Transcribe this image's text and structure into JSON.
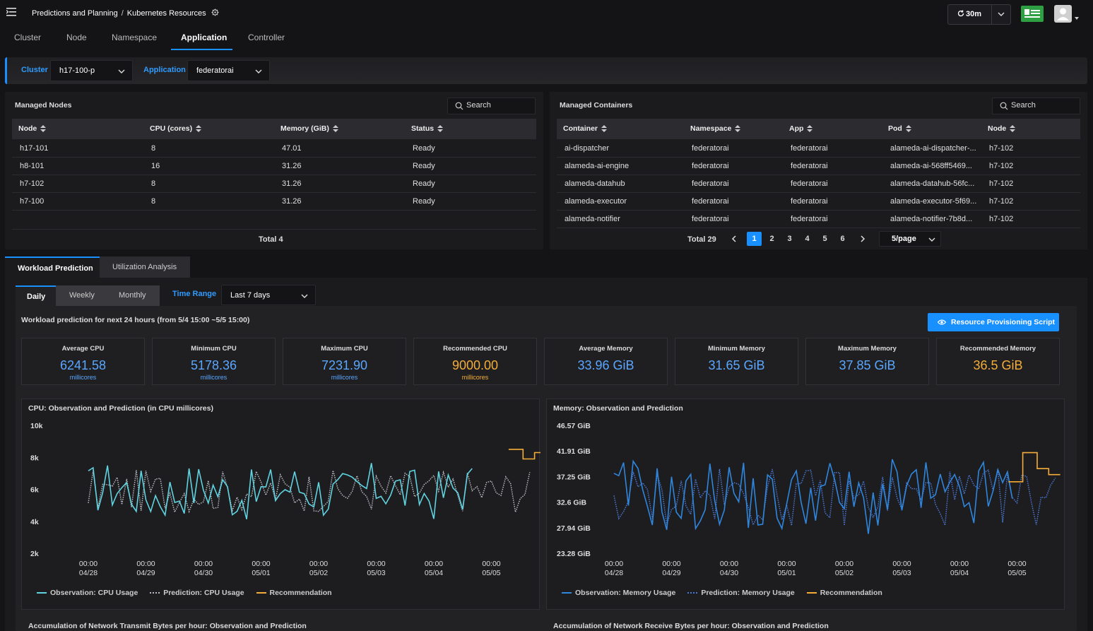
{
  "header": {
    "breadcrumb": [
      "Predictions and Planning",
      "Kubernetes Resources"
    ],
    "refresh_label": "30m"
  },
  "tabs": [
    "Cluster",
    "Node",
    "Namespace",
    "Application",
    "Controller"
  ],
  "active_tab": "Application",
  "filters": {
    "cluster_label": "Cluster",
    "cluster_value": "h17-100-p",
    "application_label": "Application",
    "application_value": "federatorai"
  },
  "managed_nodes": {
    "title": "Managed Nodes",
    "search_placeholder": "Search",
    "columns": [
      "Node",
      "CPU (cores)",
      "Memory (GiB)",
      "Status"
    ],
    "rows": [
      [
        "h17-101",
        "8",
        "47.01",
        "Ready"
      ],
      [
        "h8-101",
        "16",
        "31.26",
        "Ready"
      ],
      [
        "h7-102",
        "8",
        "31.26",
        "Ready"
      ],
      [
        "h7-100",
        "8",
        "31.26",
        "Ready"
      ]
    ],
    "total": "Total 4"
  },
  "managed_containers": {
    "title": "Managed Containers",
    "search_placeholder": "Search",
    "columns": [
      "Container",
      "Namespace",
      "App",
      "Pod",
      "Node"
    ],
    "rows": [
      [
        "ai-dispatcher",
        "federatorai",
        "federatorai",
        "alameda-ai-dispatcher-...",
        "h7-102"
      ],
      [
        "alameda-ai-engine",
        "federatorai",
        "federatorai",
        "alameda-ai-568ff5469...",
        "h7-102"
      ],
      [
        "alameda-datahub",
        "federatorai",
        "federatorai",
        "alameda-datahub-56fc...",
        "h7-102"
      ],
      [
        "alameda-executor",
        "federatorai",
        "federatorai",
        "alameda-executor-5f69...",
        "h7-102"
      ],
      [
        "alameda-notifier",
        "federatorai",
        "federatorai",
        "alameda-notifier-7b8d...",
        "h7-102"
      ]
    ],
    "total": "Total 29",
    "pages": [
      "1",
      "2",
      "3",
      "4",
      "5",
      "6"
    ],
    "current_page": "1",
    "page_size": "5/page"
  },
  "section_tabs": [
    "Workload Prediction",
    "Utilization Analysis"
  ],
  "period_tabs": [
    "Daily",
    "Weekly",
    "Monthly"
  ],
  "time_range_label": "Time Range",
  "time_range_value": "Last 7 days",
  "description": "Workload prediction for next 24 hours (from 5/4 15:00 ~5/5 15:00)",
  "provision_button": "Resource Provisioning Script",
  "stats": [
    {
      "title": "Average CPU",
      "value": "6241.58",
      "unit": "millicores",
      "color": "blue"
    },
    {
      "title": "Minimum CPU",
      "value": "5178.36",
      "unit": "millicores",
      "color": "blue"
    },
    {
      "title": "Maximum CPU",
      "value": "7231.90",
      "unit": "millicores",
      "color": "blue"
    },
    {
      "title": "Recommended CPU",
      "value": "9000.00",
      "unit": "millicores",
      "color": "orange"
    },
    {
      "title": "Average Memory",
      "value": "33.96 GiB",
      "unit": "",
      "color": "blue"
    },
    {
      "title": "Minimum Memory",
      "value": "31.65 GiB",
      "unit": "",
      "color": "blue"
    },
    {
      "title": "Maximum Memory",
      "value": "37.85 GiB",
      "unit": "",
      "color": "blue"
    },
    {
      "title": "Recommended Memory",
      "value": "36.5 GiB",
      "unit": "",
      "color": "orange"
    }
  ],
  "chart_data": [
    {
      "type": "line",
      "title": "CPU: Observation and Prediction (in CPU millicores)",
      "y_ticks": [
        "10k",
        "8k",
        "6k",
        "4k",
        "2k"
      ],
      "ylim": [
        2000,
        10000
      ],
      "x_ticks": [
        [
          "00:00",
          "04/28"
        ],
        [
          "00:00",
          "04/29"
        ],
        [
          "00:00",
          "04/30"
        ],
        [
          "00:00",
          "05/01"
        ],
        [
          "00:00",
          "05/02"
        ],
        [
          "00:00",
          "05/03"
        ],
        [
          "00:00",
          "05/04"
        ],
        [
          "00:00",
          "05/05"
        ]
      ],
      "series": [
        {
          "name": "Observation: CPU Usage",
          "color": "#5fd3e0",
          "style": "solid"
        },
        {
          "name": "Prediction: CPU Usage",
          "color": "#b8bcc4",
          "style": "dotted"
        },
        {
          "name": "Recommendation",
          "color": "#f6ad37",
          "style": "solid"
        }
      ],
      "recommendation": [
        [
          7.3,
          8500
        ],
        [
          7.55,
          8500
        ],
        [
          7.55,
          7900
        ],
        [
          7.75,
          7900
        ],
        [
          7.75,
          8300
        ],
        [
          8.0,
          8300
        ]
      ],
      "observation_range": [
        4000,
        7800
      ],
      "observation_end_day": 6.65
    },
    {
      "type": "line",
      "title": "Memory: Observation and Prediction",
      "y_ticks": [
        "46.57 GiB",
        "41.91 GiB",
        "37.25 GiB",
        "32.6 GiB",
        "27.94 GiB",
        "23.28 GiB"
      ],
      "ylim": [
        23.28,
        46.57
      ],
      "x_ticks": [
        [
          "00:00",
          "04/28"
        ],
        [
          "00:00",
          "04/29"
        ],
        [
          "00:00",
          "04/30"
        ],
        [
          "00:00",
          "05/01"
        ],
        [
          "00:00",
          "05/02"
        ],
        [
          "00:00",
          "05/03"
        ],
        [
          "00:00",
          "05/04"
        ],
        [
          "00:00",
          "05/05"
        ]
      ],
      "series": [
        {
          "name": "Observation: Memory Usage",
          "color": "#2f86dd",
          "style": "solid"
        },
        {
          "name": "Prediction: Memory Usage",
          "color": "#4a78d6",
          "style": "dotted"
        },
        {
          "name": "Recommendation",
          "color": "#f6ad37",
          "style": "solid"
        }
      ],
      "recommendation": [
        [
          6.85,
          36.3
        ],
        [
          7.1,
          36.3
        ],
        [
          7.1,
          41.6
        ],
        [
          7.35,
          41.6
        ],
        [
          7.35,
          38.7
        ],
        [
          7.55,
          38.7
        ],
        [
          7.55,
          37.6
        ],
        [
          7.75,
          37.6
        ]
      ],
      "observation_range": [
        26.0,
        41.0
      ],
      "observation_end_day": 6.9
    }
  ],
  "bottom_titles": [
    "Accumulation of Network Transmit Bytes per hour: Observation and Prediction",
    "Accumulation of Network Receive Bytes per hour: Observation and Prediction"
  ]
}
